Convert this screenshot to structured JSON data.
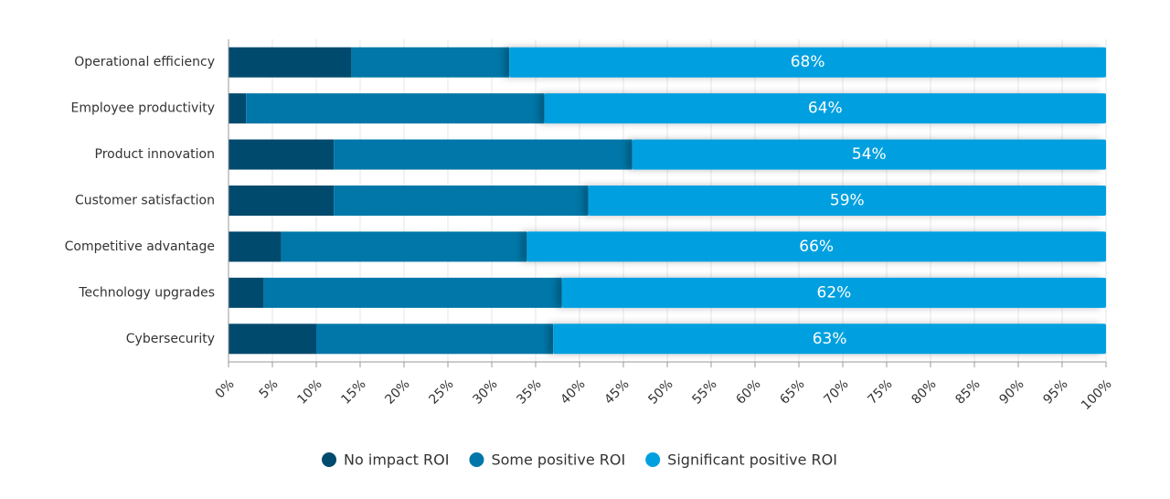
{
  "chart_data": {
    "type": "stacked-bar-horizontal",
    "categories": [
      "Operational efficiency",
      "Employee productivity",
      "Product innovation",
      "Customer satisfaction",
      "Competitive advantage",
      "Technology upgrades",
      "Cybersecurity"
    ],
    "series": [
      {
        "name": "No impact ROI",
        "color": "#004a6e",
        "values": [
          14,
          2,
          12,
          12,
          6,
          4,
          10
        ]
      },
      {
        "name": "Some positive ROI",
        "color": "#0077a8",
        "values": [
          18,
          34,
          34,
          29,
          28,
          34,
          27
        ]
      },
      {
        "name": "Significant positive ROI",
        "color": "#00a0e0",
        "values": [
          68,
          64,
          54,
          59,
          66,
          62,
          63
        ],
        "value_labels": [
          "68%",
          "64%",
          "54%",
          "59%",
          "66%",
          "62%",
          "63%"
        ]
      }
    ],
    "xlim": [
      0,
      100
    ],
    "xticks": [
      {
        "value": 0,
        "label": "0%"
      },
      {
        "value": 5,
        "label": "5%"
      },
      {
        "value": 10,
        "label": "10%"
      },
      {
        "value": 15,
        "label": "15%"
      },
      {
        "value": 20,
        "label": "20%"
      },
      {
        "value": 25,
        "label": "25%"
      },
      {
        "value": 30,
        "label": "30%"
      },
      {
        "value": 35,
        "label": "35%"
      },
      {
        "value": 40,
        "label": "40%"
      },
      {
        "value": 45,
        "label": "45%"
      },
      {
        "value": 50,
        "label": "50%"
      },
      {
        "value": 55,
        "label": "55%"
      },
      {
        "value": 60,
        "label": "60%"
      },
      {
        "value": 65,
        "label": "65%"
      },
      {
        "value": 70,
        "label": "70%"
      },
      {
        "value": 75,
        "label": "75%"
      },
      {
        "value": 80,
        "label": "80%"
      },
      {
        "value": 85,
        "label": "85%"
      },
      {
        "value": 90,
        "label": "90%"
      },
      {
        "value": 95,
        "label": "95%"
      },
      {
        "value": 100,
        "label": "100%"
      }
    ],
    "grid": true,
    "legend": "bottom"
  }
}
